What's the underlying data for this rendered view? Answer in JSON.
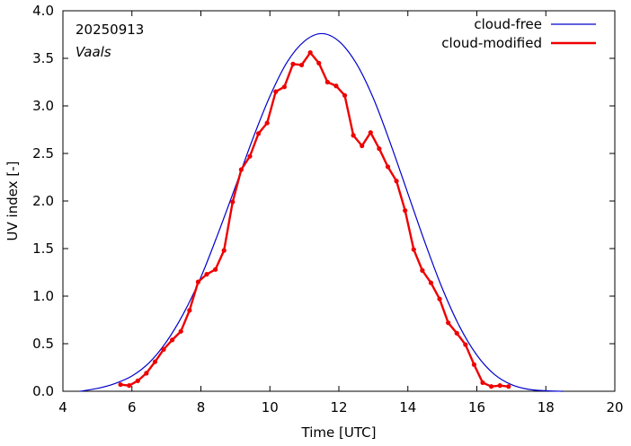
{
  "chart_data": {
    "type": "line",
    "xlabel": "Time  [UTC]",
    "ylabel": "UV index  [-]",
    "xlim": [
      4,
      20
    ],
    "ylim": [
      0,
      4.0
    ],
    "x_ticks": [
      4,
      6,
      8,
      10,
      12,
      14,
      16,
      18,
      20
    ],
    "x_tick_labels": [
      "4",
      "6",
      "8",
      "10",
      "12",
      "14",
      "16",
      "18",
      "20"
    ],
    "y_ticks": [
      0,
      0.5,
      1.0,
      1.5,
      2.0,
      2.5,
      3.0,
      3.5,
      4.0
    ],
    "y_tick_labels": [
      "0.0",
      "0.5",
      "1.0",
      "1.5",
      "2.0",
      "2.5",
      "3.0",
      "3.5",
      "4.0"
    ],
    "grid": false,
    "annotations": [
      {
        "text": "20250913",
        "style": "normal"
      },
      {
        "text": "Vaals",
        "style": "italic"
      }
    ],
    "legend_position": "top-right",
    "series": [
      {
        "name": "cloud-free",
        "color": "#0000cc",
        "markers": false,
        "x": [
          4.5,
          5.0,
          5.5,
          6.0,
          6.5,
          7.0,
          7.5,
          8.0,
          8.5,
          9.0,
          9.5,
          10.0,
          10.5,
          11.0,
          11.5,
          12.0,
          12.5,
          13.0,
          13.5,
          14.0,
          14.5,
          15.0,
          15.5,
          16.0,
          16.5,
          17.0,
          17.5,
          18.0,
          18.5
        ],
        "y": [
          0.0,
          0.03,
          0.08,
          0.16,
          0.3,
          0.52,
          0.82,
          1.2,
          1.66,
          2.15,
          2.65,
          3.1,
          3.46,
          3.68,
          3.76,
          3.68,
          3.45,
          3.08,
          2.6,
          2.08,
          1.56,
          1.08,
          0.68,
          0.38,
          0.18,
          0.07,
          0.02,
          0.005,
          0.0
        ]
      },
      {
        "name": "cloud-modified",
        "color": "#ee0000",
        "markers": true,
        "x": [
          5.67,
          5.92,
          6.17,
          6.42,
          6.67,
          6.92,
          7.17,
          7.42,
          7.67,
          7.92,
          8.17,
          8.42,
          8.67,
          8.92,
          9.17,
          9.42,
          9.67,
          9.92,
          10.17,
          10.42,
          10.67,
          10.92,
          11.17,
          11.42,
          11.67,
          11.92,
          12.17,
          12.42,
          12.67,
          12.92,
          13.17,
          13.42,
          13.67,
          13.92,
          14.17,
          14.42,
          14.67,
          14.92,
          15.17,
          15.42,
          15.67,
          15.92,
          16.17,
          16.42,
          16.67,
          16.92
        ],
        "y": [
          0.07,
          0.06,
          0.11,
          0.19,
          0.31,
          0.44,
          0.54,
          0.63,
          0.85,
          1.15,
          1.23,
          1.28,
          1.48,
          1.99,
          2.33,
          2.47,
          2.71,
          2.82,
          3.15,
          3.2,
          3.44,
          3.43,
          3.56,
          3.45,
          3.25,
          3.21,
          3.11,
          2.69,
          2.58,
          2.72,
          2.55,
          2.36,
          2.21,
          1.9,
          1.49,
          1.27,
          1.14,
          0.97,
          0.72,
          0.61,
          0.49,
          0.28,
          0.09,
          0.05,
          0.06,
          0.05
        ]
      }
    ]
  }
}
